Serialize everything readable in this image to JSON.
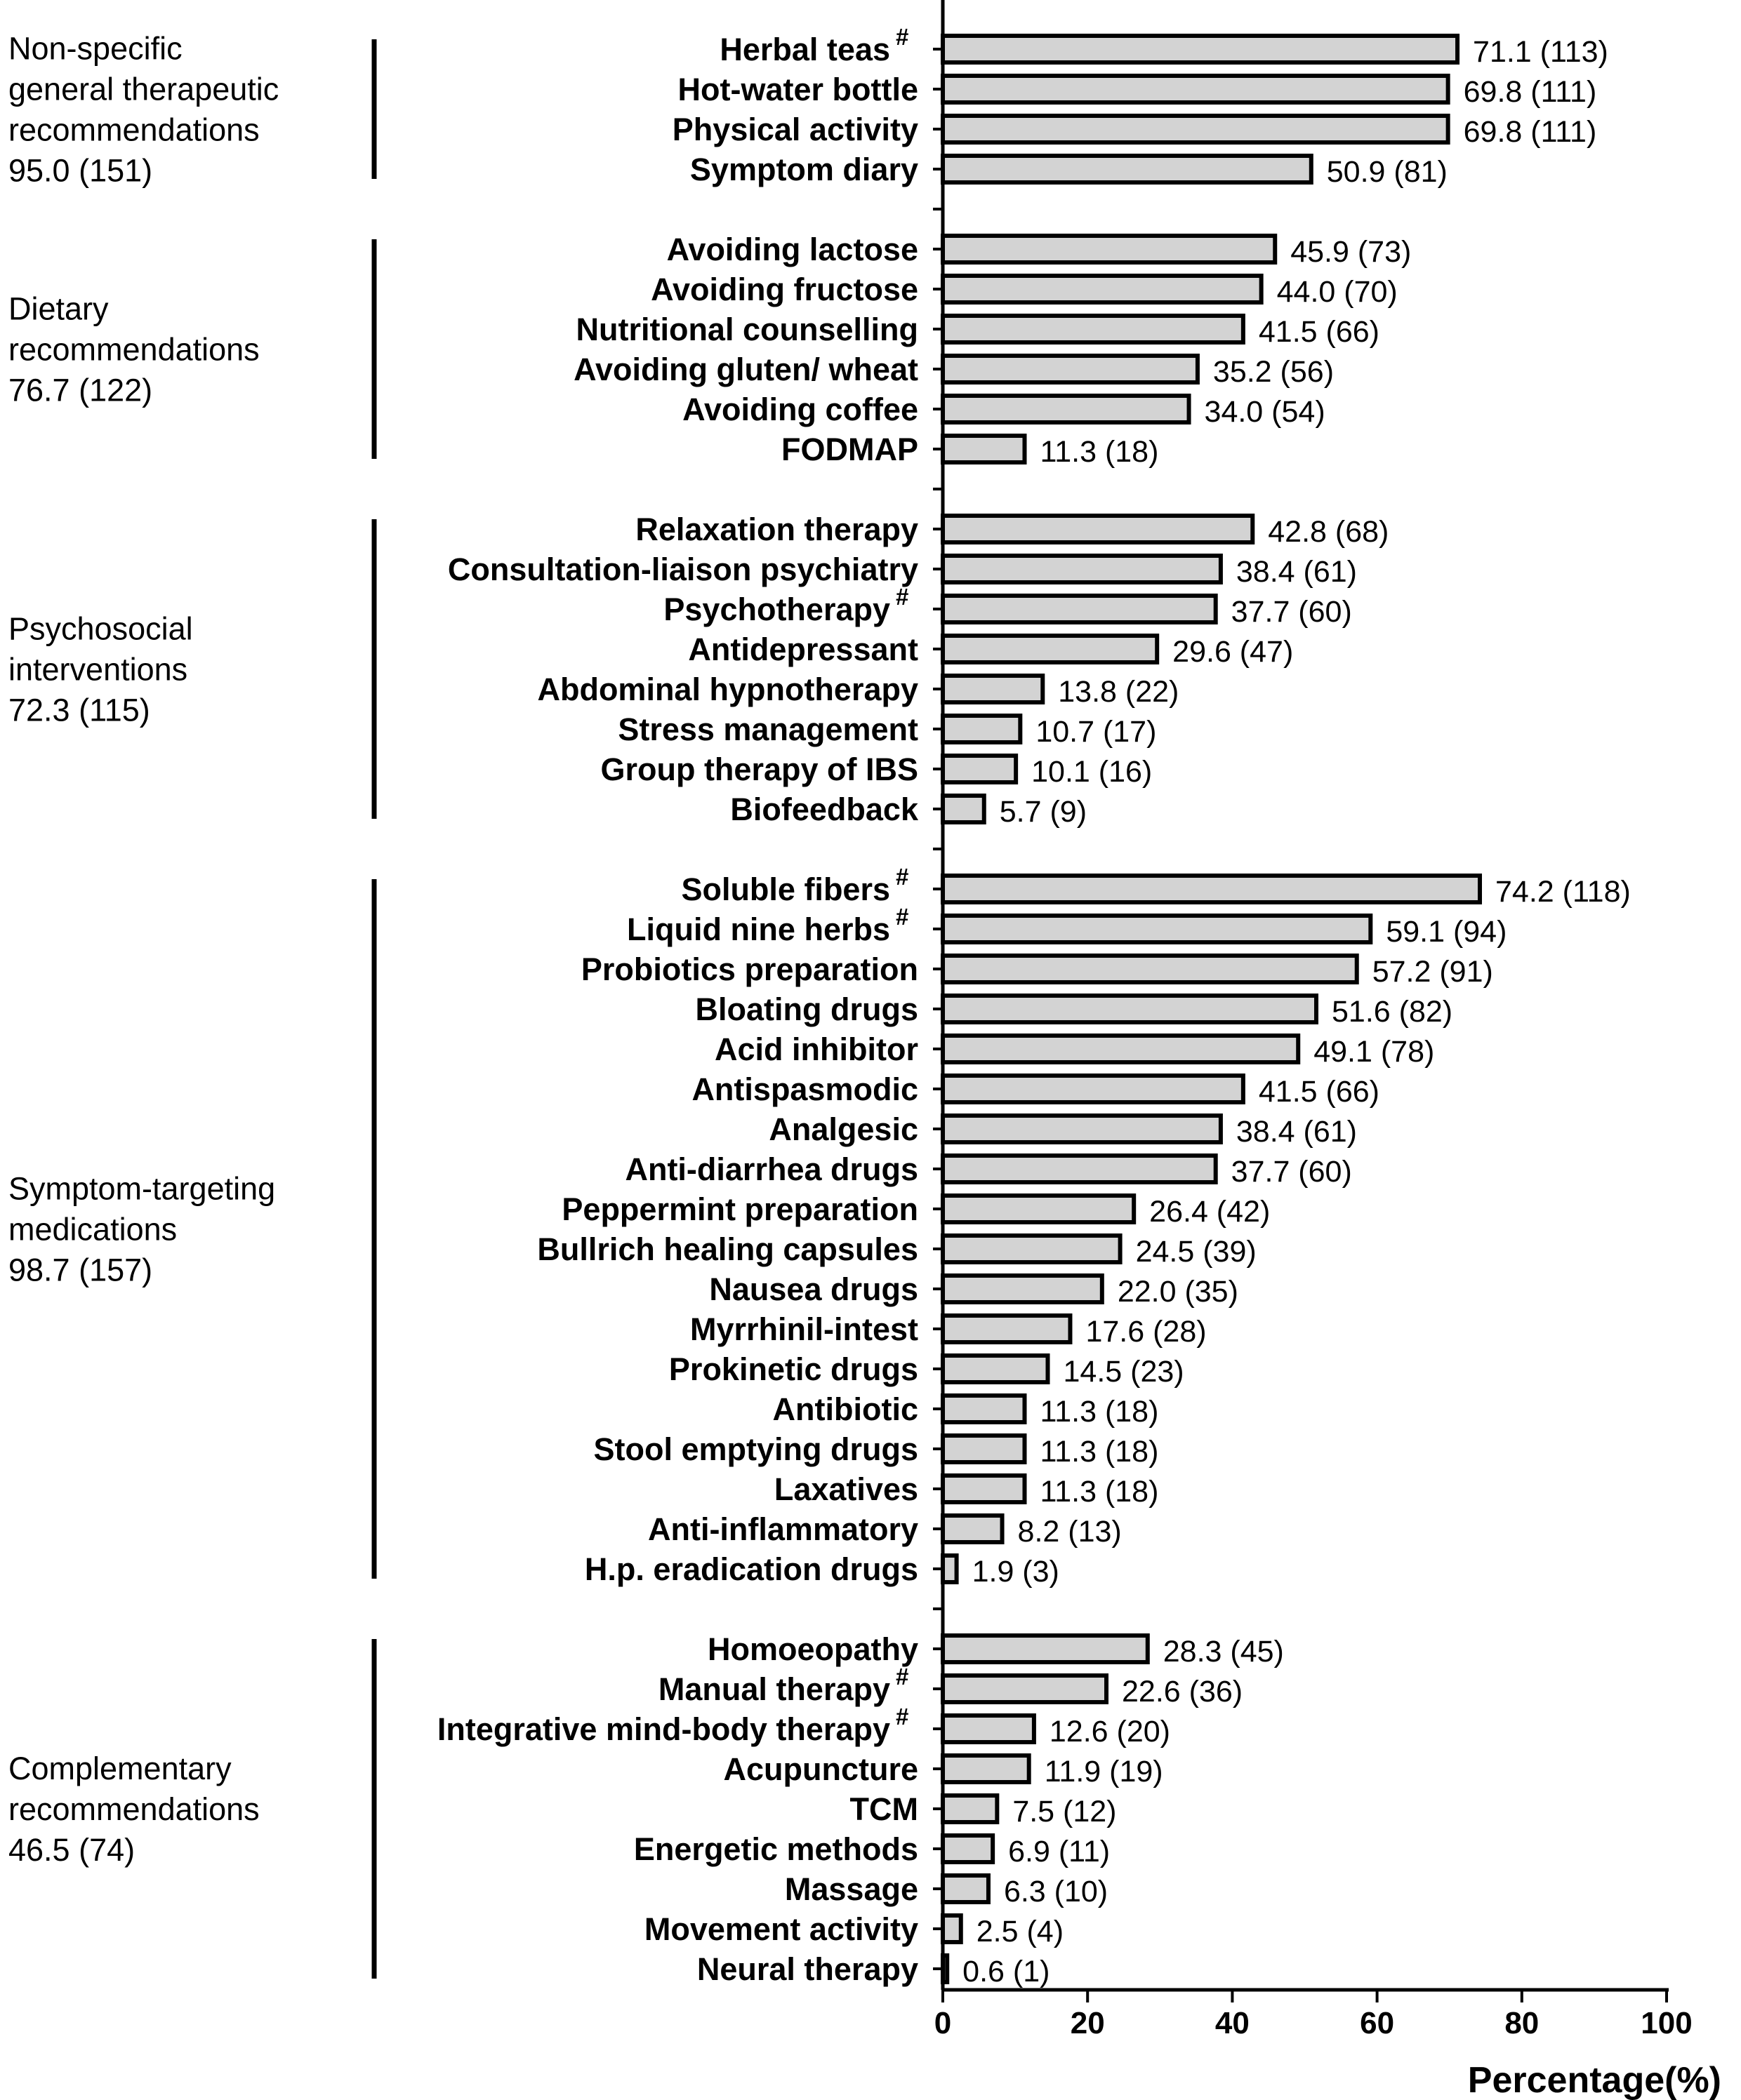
{
  "chart_data": {
    "type": "bar",
    "orientation": "horizontal",
    "xlabel": "Percentage(%)",
    "xlim": [
      0,
      100
    ],
    "xticks": [
      0,
      20,
      40,
      60,
      80,
      100
    ],
    "bar_color": "#d3d3d3",
    "edge_color": "#000000",
    "groups": [
      {
        "label_lines": [
          "Non-specific",
          "general therapeutic",
          "recommendations",
          "95.0 (151)"
        ],
        "items": [
          {
            "label": "Herbal teas",
            "hash": true,
            "value": 71.1,
            "display": "71.1 (113)"
          },
          {
            "label": "Hot-water bottle",
            "hash": false,
            "value": 69.8,
            "display": "69.8 (111)"
          },
          {
            "label": "Physical activity",
            "hash": false,
            "value": 69.8,
            "display": "69.8 (111)"
          },
          {
            "label": "Symptom diary",
            "hash": false,
            "value": 50.9,
            "display": "50.9 (81)"
          }
        ]
      },
      {
        "label_lines": [
          "Dietary",
          "recommendations",
          "76.7 (122)"
        ],
        "items": [
          {
            "label": "Avoiding lactose",
            "hash": false,
            "value": 45.9,
            "display": "45.9 (73)"
          },
          {
            "label": "Avoiding fructose",
            "hash": false,
            "value": 44.0,
            "display": "44.0 (70)"
          },
          {
            "label": "Nutritional counselling",
            "hash": false,
            "value": 41.5,
            "display": "41.5 (66)"
          },
          {
            "label": "Avoiding gluten/ wheat",
            "hash": false,
            "value": 35.2,
            "display": "35.2 (56)"
          },
          {
            "label": "Avoiding coffee",
            "hash": false,
            "value": 34.0,
            "display": "34.0 (54)"
          },
          {
            "label": "FODMAP",
            "hash": false,
            "value": 11.3,
            "display": "11.3 (18)"
          }
        ]
      },
      {
        "label_lines": [
          "Psychosocial",
          "interventions",
          "72.3 (115)"
        ],
        "items": [
          {
            "label": "Relaxation therapy",
            "hash": false,
            "value": 42.8,
            "display": "42.8 (68)"
          },
          {
            "label": "Consultation-liaison psychiatry",
            "hash": false,
            "value": 38.4,
            "display": "38.4 (61)"
          },
          {
            "label": "Psychotherapy",
            "hash": true,
            "value": 37.7,
            "display": "37.7 (60)"
          },
          {
            "label": "Antidepressant",
            "hash": false,
            "value": 29.6,
            "display": "29.6 (47)"
          },
          {
            "label": "Abdominal hypnotherapy",
            "hash": false,
            "value": 13.8,
            "display": "13.8 (22)"
          },
          {
            "label": "Stress management",
            "hash": false,
            "value": 10.7,
            "display": "10.7 (17)"
          },
          {
            "label": "Group therapy of IBS",
            "hash": false,
            "value": 10.1,
            "display": "10.1 (16)"
          },
          {
            "label": "Biofeedback",
            "hash": false,
            "value": 5.7,
            "display": "5.7 (9)"
          }
        ]
      },
      {
        "label_lines": [
          "Symptom-targeting",
          "medications",
          "98.7 (157)"
        ],
        "items": [
          {
            "label": "Soluble fibers",
            "hash": true,
            "value": 74.2,
            "display": "74.2 (118)"
          },
          {
            "label": "Liquid nine herbs",
            "hash": true,
            "value": 59.1,
            "display": "59.1 (94)"
          },
          {
            "label": "Probiotics preparation",
            "hash": false,
            "value": 57.2,
            "display": "57.2 (91)"
          },
          {
            "label": "Bloating drugs",
            "hash": false,
            "value": 51.6,
            "display": "51.6 (82)"
          },
          {
            "label": "Acid inhibitor",
            "hash": false,
            "value": 49.1,
            "display": "49.1 (78)"
          },
          {
            "label": "Antispasmodic",
            "hash": false,
            "value": 41.5,
            "display": "41.5 (66)"
          },
          {
            "label": "Analgesic",
            "hash": false,
            "value": 38.4,
            "display": "38.4 (61)"
          },
          {
            "label": "Anti-diarrhea drugs",
            "hash": false,
            "value": 37.7,
            "display": "37.7 (60)"
          },
          {
            "label": "Peppermint preparation",
            "hash": false,
            "value": 26.4,
            "display": "26.4 (42)"
          },
          {
            "label": "Bullrich healing capsules",
            "hash": false,
            "value": 24.5,
            "display": "24.5 (39)"
          },
          {
            "label": "Nausea drugs",
            "hash": false,
            "value": 22.0,
            "display": "22.0 (35)"
          },
          {
            "label": "Myrrhinil-intest",
            "hash": false,
            "value": 17.6,
            "display": "17.6 (28)"
          },
          {
            "label": "Prokinetic drugs",
            "hash": false,
            "value": 14.5,
            "display": "14.5 (23)"
          },
          {
            "label": "Antibiotic",
            "hash": false,
            "value": 11.3,
            "display": "11.3 (18)"
          },
          {
            "label": "Stool emptying drugs",
            "hash": false,
            "value": 11.3,
            "display": "11.3 (18)"
          },
          {
            "label": "Laxatives",
            "hash": false,
            "value": 11.3,
            "display": "11.3 (18)"
          },
          {
            "label": "Anti-inflammatory",
            "hash": false,
            "value": 8.2,
            "display": "8.2 (13)"
          },
          {
            "label": "H.p. eradication drugs",
            "hash": false,
            "value": 1.9,
            "display": "1.9 (3)"
          }
        ]
      },
      {
        "label_lines": [
          "Complementary",
          "recommendations",
          "46.5 (74)"
        ],
        "items": [
          {
            "label": "Homoeopathy",
            "hash": false,
            "value": 28.3,
            "display": "28.3 (45)"
          },
          {
            "label": "Manual therapy",
            "hash": true,
            "value": 22.6,
            "display": "22.6 (36)"
          },
          {
            "label": "Integrative mind-body therapy",
            "hash": true,
            "value": 12.6,
            "display": "12.6 (20)"
          },
          {
            "label": "Acupuncture",
            "hash": false,
            "value": 11.9,
            "display": "11.9 (19)"
          },
          {
            "label": "TCM",
            "hash": false,
            "value": 7.5,
            "display": "7.5 (12)"
          },
          {
            "label": "Energetic methods",
            "hash": false,
            "value": 6.9,
            "display": "6.9 (11)"
          },
          {
            "label": "Massage",
            "hash": false,
            "value": 6.3,
            "display": "6.3 (10)"
          },
          {
            "label": "Movement activity",
            "hash": false,
            "value": 2.5,
            "display": "2.5 (4)"
          },
          {
            "label": "Neural therapy",
            "hash": false,
            "value": 0.6,
            "display": "0.6 (1)"
          }
        ]
      }
    ]
  }
}
